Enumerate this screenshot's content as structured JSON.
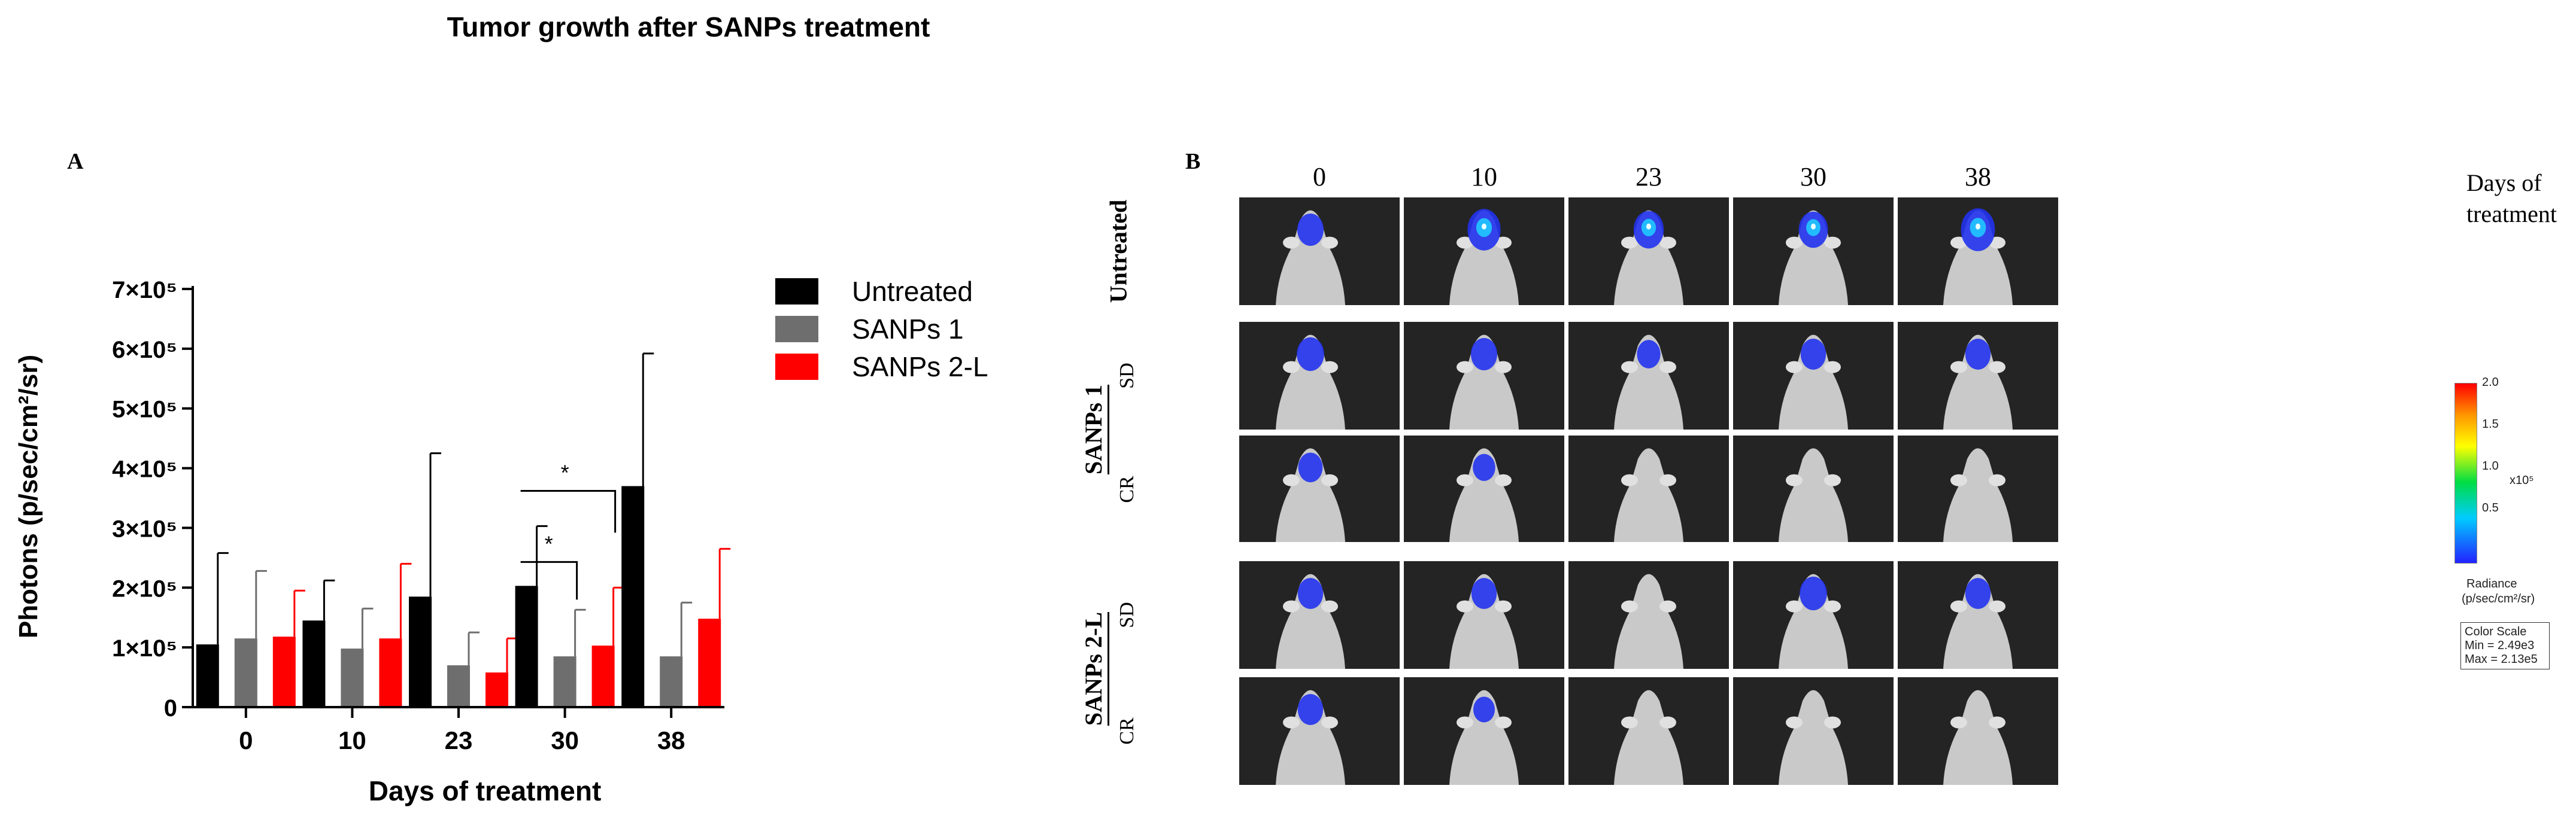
{
  "figure_title": "Tumor growth after SANPs treatment",
  "panel_a_label": "A",
  "panel_b_label": "B",
  "chart_data": {
    "type": "bar",
    "title": "",
    "xlabel": "Days of treatment",
    "ylabel": "Photons (p/sec/cm²/sr)",
    "categories": [
      "0",
      "10",
      "23",
      "30",
      "38"
    ],
    "ylim": [
      0,
      700000
    ],
    "yticks": [
      0,
      100000,
      200000,
      300000,
      400000,
      500000,
      600000,
      700000
    ],
    "ytick_labels": [
      "0",
      "1×10⁵",
      "2×10⁵",
      "3×10⁵",
      "4×10⁵",
      "5×10⁵",
      "6×10⁵",
      "7×10⁵"
    ],
    "legend_position": "right",
    "series": [
      {
        "name": "Untreated",
        "color": "#000000",
        "values": [
          105000,
          145000,
          185000,
          203000,
          370000
        ],
        "error": [
          153000,
          67000,
          240000,
          100000,
          222000
        ]
      },
      {
        "name": "SANPs 1",
        "color": "#6e6e6e",
        "values": [
          115000,
          98000,
          70000,
          85000,
          85000
        ],
        "error": [
          113000,
          67000,
          55000,
          78000,
          90000
        ]
      },
      {
        "name": "SANPs 2-L",
        "color": "#ff0000",
        "values": [
          118000,
          115000,
          58000,
          103000,
          148000
        ],
        "error": [
          77000,
          125000,
          57000,
          97000,
          117000
        ]
      }
    ],
    "annotations": [
      "*",
      "*"
    ]
  },
  "panel_b": {
    "columns": [
      "0",
      "10",
      "23",
      "30",
      "38"
    ],
    "columns_suffix": "Days of\ntreatment",
    "rows": [
      {
        "group": "Untreated",
        "sub": ""
      },
      {
        "group": "SANPs 1",
        "sub": "SD"
      },
      {
        "group": "SANPs 1",
        "sub": "CR"
      },
      {
        "group": "SANPs 2-L",
        "sub": "SD"
      },
      {
        "group": "SANPs 2-L",
        "sub": "CR"
      }
    ],
    "group_labels": [
      "Untreated",
      "SANPs 1",
      "SANPs 2-L"
    ],
    "sub_labels": [
      "SD",
      "CR",
      "SD",
      "CR"
    ],
    "signal_levels": [
      [
        0.5,
        0.85,
        0.7,
        0.65,
        0.9
      ],
      [
        0.55,
        0.5,
        0.35,
        0.45,
        0.45
      ],
      [
        0.4,
        0.3,
        0.0,
        0.0,
        0.0
      ],
      [
        0.45,
        0.45,
        0.0,
        0.55,
        0.45
      ],
      [
        0.45,
        0.25,
        0.0,
        0.0,
        0.0
      ]
    ],
    "color_scale": {
      "ticks": [
        "2.0",
        "1.5",
        "1.0",
        "0.5"
      ],
      "exponent": "x10⁵",
      "unit_line1": "Radiance",
      "unit_line2": "(p/sec/cm²/sr)",
      "box_title": "Color Scale",
      "min": "Min = 2.49e3",
      "max": "Max = 2.13e5"
    }
  }
}
